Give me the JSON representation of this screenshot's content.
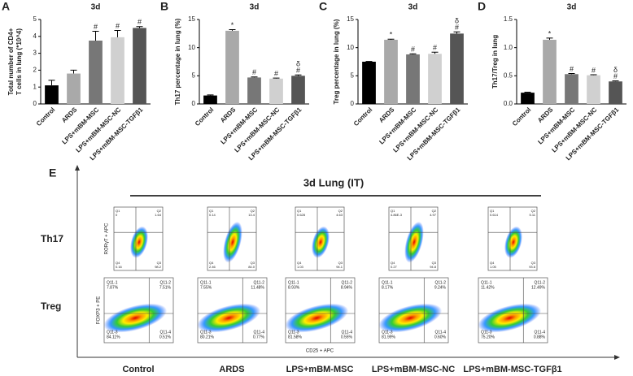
{
  "chart_data": [
    {
      "type": "bar",
      "panel": "A",
      "title": "3d",
      "ylabel": [
        "Total number of CD4+",
        "T cells in lung (*10^4)"
      ],
      "categories": [
        "Control",
        "ARDS",
        "LPS+mBM-MSC",
        "LPS+mBM-MSC-NC",
        "LPS+mBM-MSC-TGFβ1"
      ],
      "values": [
        1.1,
        1.8,
        3.75,
        3.95,
        4.5
      ],
      "errors": [
        0.3,
        0.2,
        0.55,
        0.4,
        0.08
      ],
      "colors": [
        "#000000",
        "#a9a9a9",
        "#777777",
        "#d0d0d0",
        "#555555"
      ],
      "annotations": [
        [],
        [],
        [
          "#"
        ],
        [
          "#"
        ],
        [
          "#"
        ]
      ],
      "ylim": [
        0,
        5
      ],
      "yticks": [
        0,
        1,
        2,
        3,
        4,
        5
      ]
    },
    {
      "type": "bar",
      "panel": "B",
      "title": "3d",
      "ylabel": [
        "Th17 percentage in lung (%)"
      ],
      "categories": [
        "Control",
        "ARDS",
        "LPS+mBM-MSC",
        "LPS+mBM-MSC-NC",
        "LPS+mBM-MSC-TGFβ1"
      ],
      "values": [
        1.5,
        13,
        4.7,
        4.5,
        5.0
      ],
      "errors": [
        0.1,
        0.2,
        0.1,
        0.1,
        0.15
      ],
      "colors": [
        "#000000",
        "#a9a9a9",
        "#777777",
        "#d0d0d0",
        "#555555"
      ],
      "annotations": [
        [],
        [
          "*"
        ],
        [
          "#"
        ],
        [
          "#"
        ],
        [
          "δ",
          "#"
        ]
      ],
      "ylim": [
        0,
        15
      ],
      "yticks": [
        0,
        5,
        10,
        15
      ]
    },
    {
      "type": "bar",
      "panel": "C",
      "title": "3d",
      "ylabel": [
        "Treg percentage in lung (%)"
      ],
      "categories": [
        "Control",
        "ARDS",
        "LPS+mBM-MSC",
        "LPS+mBM-MSC-NC",
        "LPS+mBM-MSC-TGFβ1"
      ],
      "values": [
        7.5,
        11.4,
        8.8,
        8.9,
        12.5
      ],
      "errors": [
        0.05,
        0.1,
        0.1,
        0.3,
        0.3
      ],
      "colors": [
        "#000000",
        "#a9a9a9",
        "#777777",
        "#d0d0d0",
        "#555555"
      ],
      "annotations": [
        [],
        [
          "*"
        ],
        [
          "#"
        ],
        [
          "#"
        ],
        [
          "δ",
          "#"
        ]
      ],
      "ylim": [
        0,
        15
      ],
      "yticks": [
        0,
        5,
        10,
        15
      ]
    },
    {
      "type": "bar",
      "panel": "D",
      "title": "3d",
      "ylabel": [
        "Th17/Treg in lung"
      ],
      "categories": [
        "Control",
        "ARDS",
        "LPS+mBM-MSC",
        "LPS+mBM-MSC-NC",
        "LPS+mBM-MSC-TGFβ1"
      ],
      "values": [
        0.2,
        1.14,
        0.53,
        0.51,
        0.4
      ],
      "errors": [
        0.01,
        0.03,
        0.01,
        0.01,
        0.01
      ],
      "colors": [
        "#000000",
        "#a9a9a9",
        "#777777",
        "#d0d0d0",
        "#555555"
      ],
      "annotations": [
        [],
        [
          "*"
        ],
        [
          "#"
        ],
        [
          "#"
        ],
        [
          "δ",
          "#"
        ]
      ],
      "ylim": [
        0,
        1.5
      ],
      "yticks": [
        {
          "value": 0,
          "label": "0.0"
        },
        {
          "value": 0.5,
          "label": "0.5"
        },
        {
          "value": 1,
          "label": "1.0"
        },
        {
          "value": 1.5,
          "label": "1.5"
        }
      ]
    }
  ],
  "flow_panel": {
    "panel": "E",
    "title": "3d Lung (IT)",
    "rows": [
      "Th17",
      "Treg"
    ],
    "columns": [
      "Control",
      "ARDS",
      "LPS+mBM-MSC",
      "LPS+mBM-MSC-NC",
      "LPS+mBM-MSC-TGFβ1"
    ],
    "th17_ylabel": "RORγT + APC",
    "treg_ylabel": "FOXP3 + PE",
    "treg_xlabel": "CD25 + APC",
    "th17_plots": [
      [
        {
          "name": "Q1",
          "value": "0"
        },
        {
          "name": "Q2",
          "value": "1.64"
        },
        {
          "name": "Q4",
          "value": "0.16"
        },
        {
          "name": "Q3",
          "value": "98.2"
        }
      ],
      [
        {
          "name": "Q1",
          "value": "0.14"
        },
        {
          "name": "Q2",
          "value": "13.4"
        },
        {
          "name": "Q4",
          "value": "2.46"
        },
        {
          "name": "Q3",
          "value": "84.0"
        }
      ],
      [
        {
          "name": "Q1",
          "value": "0.628"
        },
        {
          "name": "Q2",
          "value": "4.63"
        },
        {
          "name": "Q4",
          "value": "1.03"
        },
        {
          "name": "Q3",
          "value": "94.1"
        }
      ],
      [
        {
          "name": "Q1",
          "value": "4.86E-3"
        },
        {
          "name": "Q2",
          "value": "4.97"
        },
        {
          "name": "Q4",
          "value": "0.27"
        },
        {
          "name": "Q3",
          "value": "94.8"
        }
      ],
      [
        {
          "name": "Q1",
          "value": "0.614"
        },
        {
          "name": "Q2",
          "value": "5.11"
        },
        {
          "name": "Q4",
          "value": "1.05"
        },
        {
          "name": "Q3",
          "value": "93.6"
        }
      ]
    ],
    "treg_plots": [
      [
        {
          "name": "Q11-1",
          "value": "7.87%"
        },
        {
          "name": "Q11-2",
          "value": "7.51%"
        },
        {
          "name": "Q11-3",
          "value": "84.11%"
        },
        {
          "name": "Q11-4",
          "value": "0.51%"
        }
      ],
      [
        {
          "name": "Q11-1",
          "value": "7.55%"
        },
        {
          "name": "Q11-2",
          "value": "11.48%"
        },
        {
          "name": "Q11-3",
          "value": "80.21%"
        },
        {
          "name": "Q11-4",
          "value": "0.77%"
        }
      ],
      [
        {
          "name": "Q11-1",
          "value": "8.93%"
        },
        {
          "name": "Q11-2",
          "value": "8.94%"
        },
        {
          "name": "Q11-3",
          "value": "81.58%"
        },
        {
          "name": "Q11-4",
          "value": "0.55%"
        }
      ],
      [
        {
          "name": "Q11-1",
          "value": "8.17%"
        },
        {
          "name": "Q11-2",
          "value": "9.24%"
        },
        {
          "name": "Q11-3",
          "value": "81.99%"
        },
        {
          "name": "Q11-4",
          "value": "0.60%"
        }
      ],
      [
        {
          "name": "Q11-1",
          "value": "11.42%"
        },
        {
          "name": "Q11-2",
          "value": "12.49%"
        },
        {
          "name": "Q11-3",
          "value": "75.20%"
        },
        {
          "name": "Q11-4",
          "value": "0.88%"
        }
      ]
    ]
  }
}
